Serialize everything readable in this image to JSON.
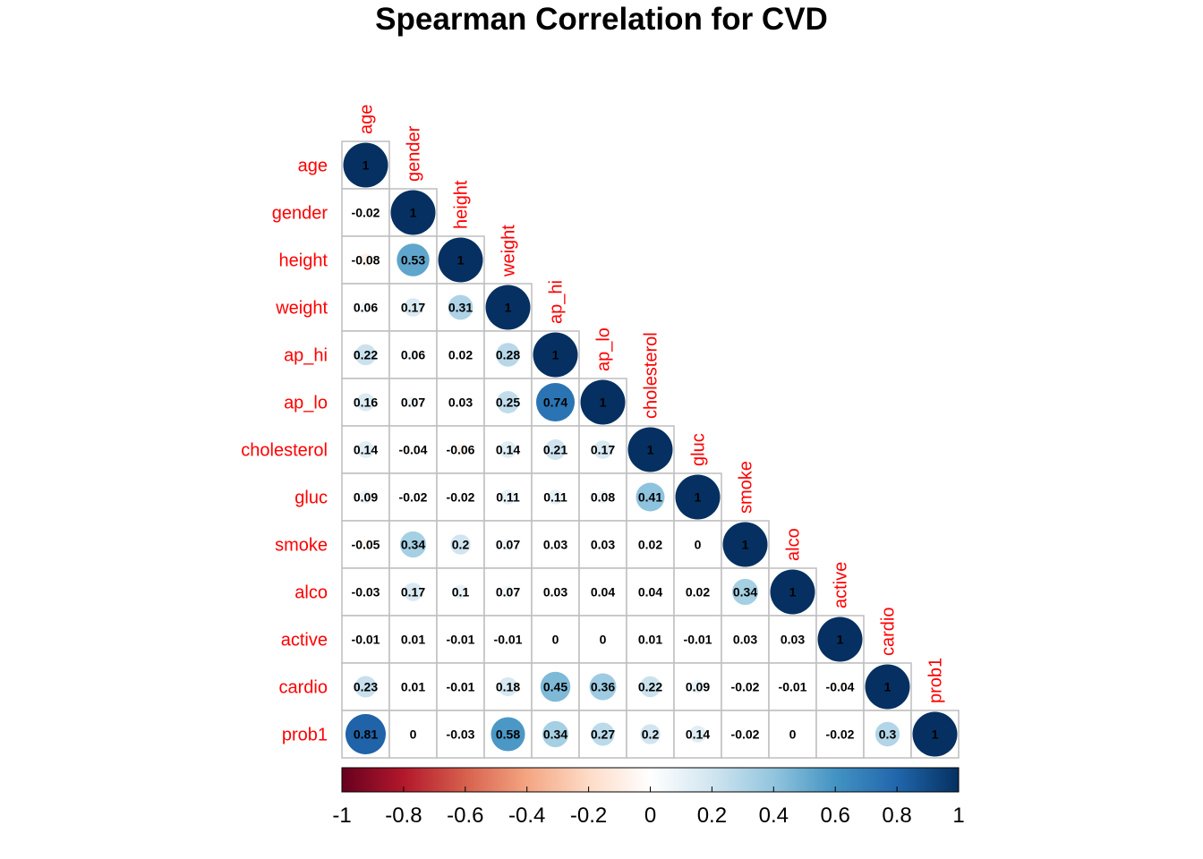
{
  "chart_data": {
    "type": "heatmap",
    "title": "Spearman Correlation for CVD",
    "method": "circle",
    "layout": "lower-triangle",
    "variables": [
      "age",
      "gender",
      "height",
      "weight",
      "ap_hi",
      "ap_lo",
      "cholesterol",
      "gluc",
      "smoke",
      "alco",
      "active",
      "cardio",
      "prob1"
    ],
    "matrix": [
      [
        1
      ],
      [
        -0.02,
        1
      ],
      [
        -0.08,
        0.53,
        1
      ],
      [
        0.06,
        0.17,
        0.31,
        1
      ],
      [
        0.22,
        0.06,
        0.02,
        0.28,
        1
      ],
      [
        0.16,
        0.07,
        0.03,
        0.25,
        0.74,
        1
      ],
      [
        0.14,
        -0.04,
        -0.06,
        0.14,
        0.21,
        0.17,
        1
      ],
      [
        0.09,
        -0.02,
        -0.02,
        0.11,
        0.11,
        0.08,
        0.41,
        1
      ],
      [
        -0.05,
        0.34,
        0.2,
        0.07,
        0.03,
        0.03,
        0.02,
        0,
        1
      ],
      [
        -0.03,
        0.17,
        0.1,
        0.07,
        0.03,
        0.04,
        0.04,
        0.02,
        0.34,
        1
      ],
      [
        -0.01,
        0.01,
        -0.01,
        -0.01,
        0,
        0,
        0.01,
        -0.01,
        0.03,
        0.03,
        1
      ],
      [
        0.23,
        0.01,
        -0.01,
        0.18,
        0.45,
        0.36,
        0.22,
        0.09,
        -0.02,
        -0.01,
        -0.04,
        1
      ],
      [
        0.81,
        0,
        -0.03,
        0.58,
        0.34,
        0.27,
        0.2,
        0.14,
        -0.02,
        0,
        -0.02,
        0.3,
        1
      ]
    ],
    "colorbar": {
      "ticks": [
        -1,
        -0.8,
        -0.6,
        -0.4,
        -0.2,
        0,
        0.2,
        0.4,
        0.6,
        0.8,
        1
      ],
      "tick_labels": [
        "-1",
        "-0.8",
        "-0.6",
        "-0.4",
        "-0.2",
        "0",
        "0.2",
        "0.4",
        "0.6",
        "0.8",
        "1"
      ],
      "range": [
        -1,
        1
      ],
      "palette": [
        "#67001F",
        "#B2182B",
        "#D6604D",
        "#F4A582",
        "#FDDBC7",
        "#FFFFFF",
        "#D1E5F0",
        "#92C5DE",
        "#4393C3",
        "#2166AC",
        "#053061"
      ]
    },
    "label_color": "#FF0000",
    "grid_color": "#BEBEBE"
  }
}
